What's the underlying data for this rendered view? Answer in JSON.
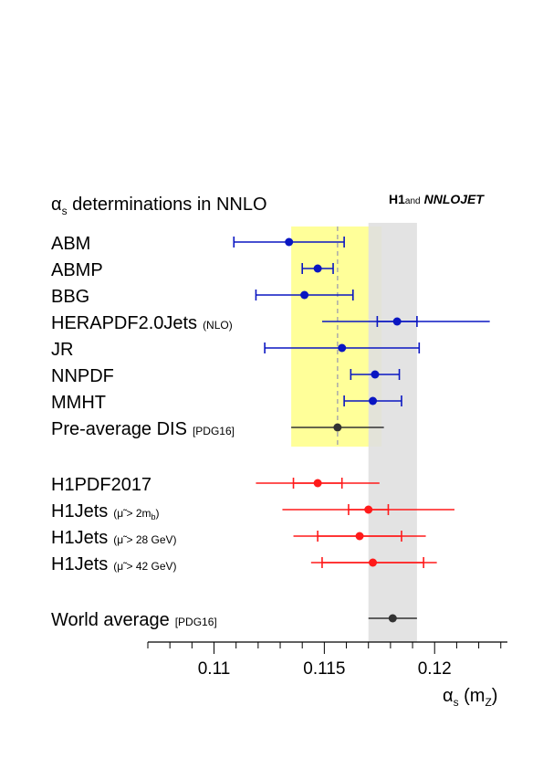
{
  "chart_data": {
    "type": "scatter",
    "title_symbol": "α",
    "title_sub": "s",
    "title_text": " determinations in NNLO",
    "logo_bold": "H1",
    "logo_small": "and",
    "logo_italic": "NNLOJET",
    "xlabel_symbol": "α",
    "xlabel_sub": "s",
    "xlabel_paren_open": " (m",
    "xlabel_sub2": "Z",
    "xlabel_paren_close": ")",
    "xlim": [
      0.107,
      0.1233
    ],
    "major_ticks": [
      0.11,
      0.115,
      0.12
    ],
    "major_tick_labels": [
      "0.11",
      "0.115",
      "0.12"
    ],
    "minor_tick_step": 0.001,
    "bands": [
      {
        "name": "pre-average-dis-band",
        "from": 0.1135,
        "to": 0.1176,
        "color": "#ffff99"
      },
      {
        "name": "world-average-band",
        "from": 0.117,
        "to": 0.1192,
        "color": "#e0e0e0"
      }
    ],
    "dashed_line": {
      "value": 0.1156,
      "color": "#aaaaaa"
    },
    "colors": {
      "blue": "#0a16c2",
      "red": "#ff1a1a",
      "black": "#333333"
    },
    "entries": [
      {
        "label": "ABM",
        "note": "",
        "value": 0.1134,
        "inner": null,
        "total": [
          0.1109,
          0.1159
        ],
        "color": "blue",
        "group": 0
      },
      {
        "label": "ABMP",
        "note": "",
        "value": 0.1147,
        "inner": [
          0.114,
          0.1154
        ],
        "total": null,
        "color": "blue",
        "group": 0
      },
      {
        "label": "BBG",
        "note": "",
        "value": 0.1141,
        "inner": null,
        "total": [
          0.1119,
          0.1163
        ],
        "color": "blue",
        "group": 0
      },
      {
        "label": "HERAPDF2.0Jets",
        "note": "(NLO)",
        "value": 0.1183,
        "inner": [
          0.1174,
          0.1192
        ],
        "total": [
          0.1149,
          0.1225
        ],
        "color": "blue",
        "group": 0
      },
      {
        "label": "JR",
        "note": "",
        "value": 0.1158,
        "inner": null,
        "total": [
          0.1123,
          0.1193
        ],
        "color": "blue",
        "group": 0
      },
      {
        "label": "NNPDF",
        "note": "",
        "value": 0.1173,
        "inner": [
          0.1162,
          0.1184
        ],
        "total": null,
        "color": "blue",
        "group": 0
      },
      {
        "label": "MMHT",
        "note": "",
        "value": 0.1172,
        "inner": [
          0.1159,
          0.1185
        ],
        "total": null,
        "color": "blue",
        "group": 0
      },
      {
        "label": "Pre-average DIS",
        "note": "[PDG16]",
        "value": 0.1156,
        "inner": null,
        "total": [
          0.1135,
          0.1177
        ],
        "color": "black",
        "group": 0
      },
      {
        "label": "H1PDF2017",
        "note": "",
        "value": 0.1147,
        "inner": [
          0.1136,
          0.1158
        ],
        "total": [
          0.1119,
          0.1175
        ],
        "color": "red",
        "group": 1
      },
      {
        "label": "H1Jets",
        "note": "(μ̃ > 2m",
        "note_sub": "b",
        "note_end": ")",
        "value": 0.117,
        "inner": [
          0.1161,
          0.1179
        ],
        "total": [
          0.1131,
          0.1209
        ],
        "color": "red",
        "group": 1
      },
      {
        "label": "H1Jets",
        "note": "(μ̃ > 28 GeV)",
        "value": 0.1166,
        "inner": [
          0.1147,
          0.1185
        ],
        "total": [
          0.1136,
          0.1196
        ],
        "color": "red",
        "group": 1
      },
      {
        "label": "H1Jets",
        "note": "(μ̃ > 42 GeV)",
        "value": 0.1172,
        "inner": [
          0.1149,
          0.1195
        ],
        "total": [
          0.1144,
          0.1201
        ],
        "color": "red",
        "group": 1
      },
      {
        "label": "World average",
        "note": "[PDG16]",
        "value": 0.1181,
        "inner": null,
        "total": [
          0.117,
          0.1192
        ],
        "color": "black",
        "group": 2
      }
    ]
  }
}
